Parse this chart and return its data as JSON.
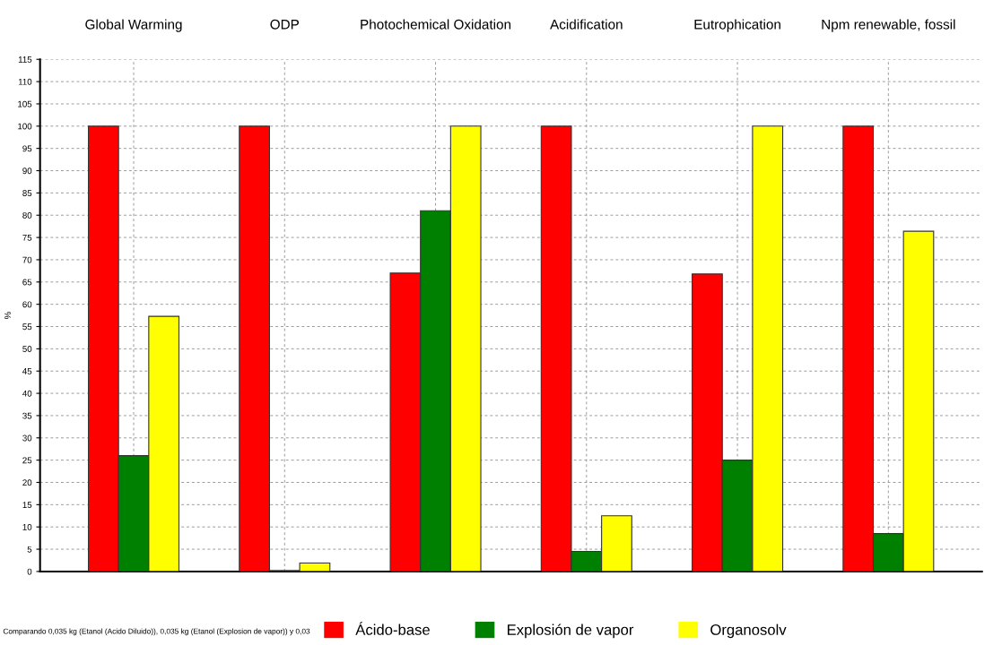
{
  "chart_data": {
    "type": "bar",
    "categories": [
      "Global Warming",
      "ODP",
      "Photochemical Oxidation",
      "Acidification",
      "Eutrophication",
      "Npm renewable, fossil"
    ],
    "ylabel": "%",
    "series": [
      {
        "name": "Ácido-base",
        "color": "#ff0000",
        "values": [
          100,
          100,
          67,
          100,
          66.8,
          100
        ]
      },
      {
        "name": "Explosión de vapor",
        "color": "#008000",
        "values": [
          26,
          0.2,
          81,
          4.5,
          25,
          8.5
        ]
      },
      {
        "name": "Organosolv",
        "color": "#ffff00",
        "values": [
          57.3,
          1.9,
          100,
          12.5,
          100,
          76.4
        ]
      }
    ],
    "ylim": [
      0,
      115
    ],
    "yticks": [
      0,
      5,
      10,
      15,
      20,
      25,
      30,
      35,
      40,
      45,
      50,
      55,
      60,
      65,
      70,
      75,
      80,
      85,
      90,
      95,
      100,
      105,
      110,
      115
    ],
    "grid": true,
    "legend": "bottom",
    "annotations": [
      "Comparando 0,035 kg (Etanol (Acido Diluido)), 0,035 kg (Etanol (Explosion de vapor)) y 0,03"
    ]
  }
}
